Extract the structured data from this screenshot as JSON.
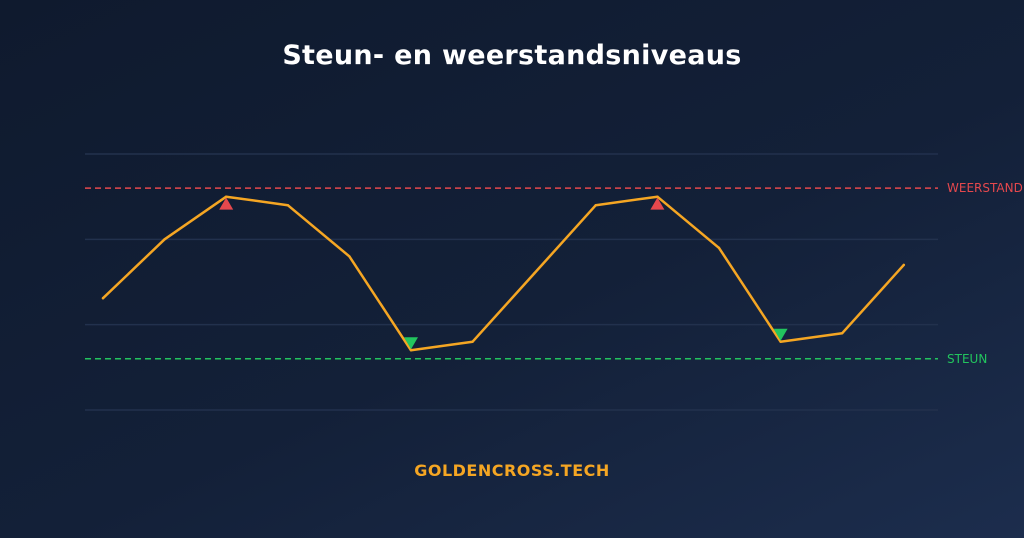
{
  "title": "Steun- en weerstandsniveaus",
  "brand": "GOLDENCROSS.TECH",
  "colors": {
    "line": "#f5a623",
    "resistance": "#e5484d",
    "support": "#22c55e",
    "grid": "#22314d"
  },
  "chart_data": {
    "type": "line",
    "title": "Steun- en weerstandsniveaus",
    "xlabel": "",
    "ylabel": "",
    "ylim": [
      0,
      300
    ],
    "grid": true,
    "gridlines": [
      0,
      100,
      200,
      300
    ],
    "series": [
      {
        "values": [
          131,
          200,
          250,
          240,
          180,
          70,
          80,
          160,
          240,
          250,
          190,
          80,
          90,
          170
        ]
      }
    ],
    "levels": [
      {
        "label": "WEERSTAND",
        "value": 260,
        "color": "#e5484d"
      },
      {
        "label": "STEUN",
        "value": 60,
        "color": "#22c55e"
      }
    ],
    "markers": [
      {
        "type": "resistance-touch",
        "index": 2
      },
      {
        "type": "support-touch",
        "index": 5
      },
      {
        "type": "resistance-touch",
        "index": 9
      },
      {
        "type": "support-touch",
        "index": 11
      }
    ]
  }
}
